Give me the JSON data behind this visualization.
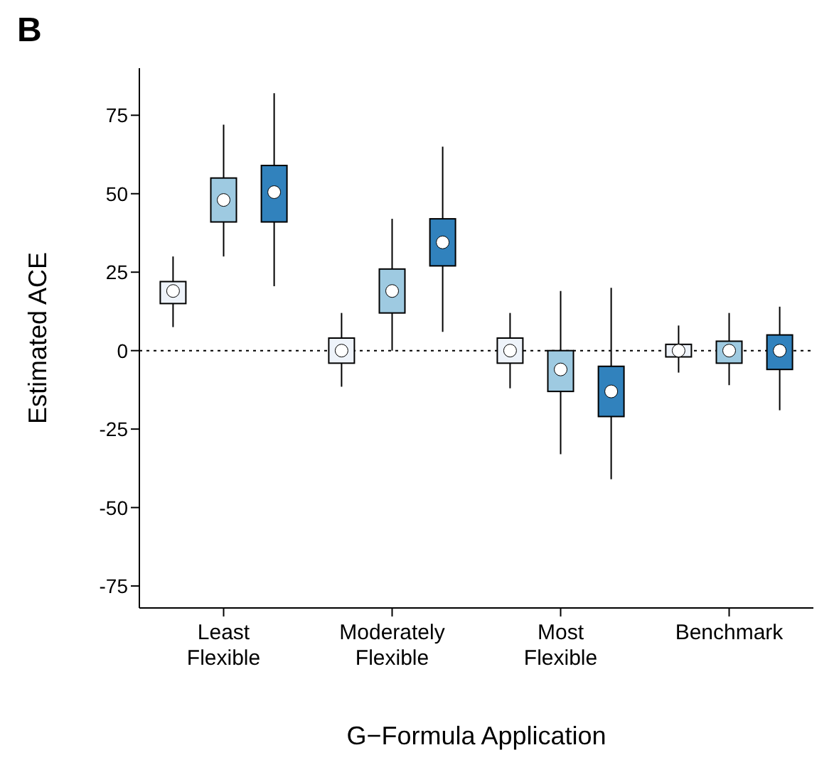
{
  "chart_data": {
    "type": "box",
    "title": "B",
    "xlabel": "G−Formula Application",
    "ylabel": "Estimated ACE",
    "categories": [
      "Least Flexible",
      "Moderately Flexible",
      "Most Flexible",
      "Benchmark"
    ],
    "series": [
      {
        "color": "#eef3fa",
        "boxes": [
          {
            "low": 7.5,
            "q1": 15,
            "median": 19,
            "q3": 22,
            "high": 30
          },
          {
            "low": -11.5,
            "q1": -4,
            "median": 0,
            "q3": 4,
            "high": 12
          },
          {
            "low": -12,
            "q1": -4,
            "median": 0,
            "q3": 4,
            "high": 12
          },
          {
            "low": -7,
            "q1": -2,
            "median": 0,
            "q3": 2,
            "high": 8
          }
        ]
      },
      {
        "color": "#9ecae1",
        "boxes": [
          {
            "low": 30,
            "q1": 41,
            "median": 48,
            "q3": 55,
            "high": 72
          },
          {
            "low": 0,
            "q1": 12,
            "median": 19,
            "q3": 26,
            "high": 42
          },
          {
            "low": -33,
            "q1": -13,
            "median": -6,
            "q3": 0,
            "high": 19
          },
          {
            "low": -11,
            "q1": -4,
            "median": 0,
            "q3": 3,
            "high": 12
          }
        ]
      },
      {
        "color": "#3182bd",
        "boxes": [
          {
            "low": 20.5,
            "q1": 41,
            "median": 50.5,
            "q3": 59,
            "high": 82
          },
          {
            "low": 6,
            "q1": 27,
            "median": 34.5,
            "q3": 42,
            "high": 65
          },
          {
            "low": -41,
            "q1": -21,
            "median": -13,
            "q3": -5,
            "high": 20
          },
          {
            "low": -19,
            "q1": -6,
            "median": 0,
            "q3": 5,
            "high": 14
          }
        ]
      }
    ],
    "ylim": [
      -82,
      90
    ],
    "yticks": [
      -75,
      -50,
      -25,
      0,
      25,
      50,
      75
    ],
    "ref_lines": [
      {
        "axis": "y",
        "value": 0,
        "line_style": "dotted"
      }
    ],
    "grid": false
  }
}
